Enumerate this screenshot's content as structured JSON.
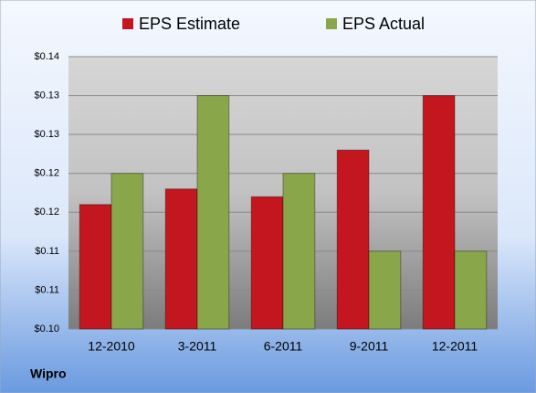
{
  "chart_data": {
    "type": "bar",
    "caption": "Wipro",
    "categories": [
      "12-2010",
      "3-2011",
      "6-2011",
      "9-2011",
      "12-2011"
    ],
    "series": [
      {
        "name": "EPS Estimate",
        "color": "#c3161e",
        "values": [
          0.116,
          0.118,
          0.117,
          0.123,
          0.13
        ]
      },
      {
        "name": "EPS Actual",
        "color": "#8aa64a",
        "values": [
          0.12,
          0.13,
          0.12,
          0.11,
          0.11
        ]
      }
    ],
    "ylim": [
      0.1,
      0.135
    ],
    "yticks": [
      {
        "value": 0.1,
        "label": "$0.10"
      },
      {
        "value": 0.105,
        "label": "$0.11"
      },
      {
        "value": 0.11,
        "label": "$0.11"
      },
      {
        "value": 0.115,
        "label": "$0.12"
      },
      {
        "value": 0.12,
        "label": "$0.12"
      },
      {
        "value": 0.125,
        "label": "$0.13"
      },
      {
        "value": 0.13,
        "label": "$0.13"
      },
      {
        "value": 0.135,
        "label": "$0.14"
      }
    ],
    "grid": true
  }
}
